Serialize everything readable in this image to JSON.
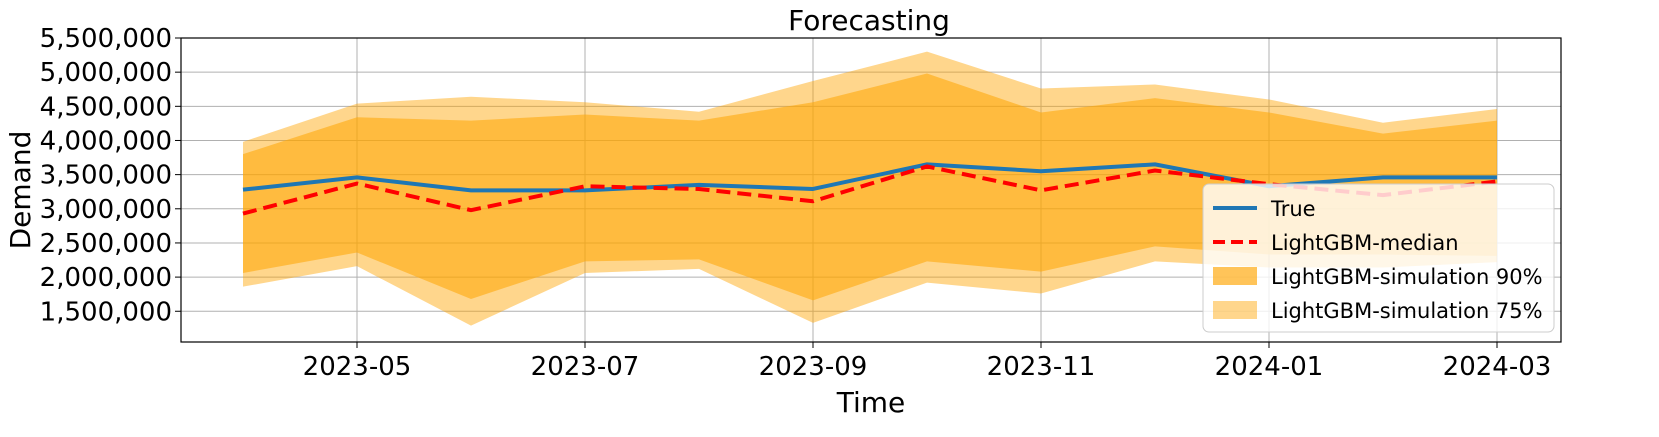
{
  "chart_data": {
    "type": "line",
    "title": "Forecasting",
    "xlabel": "Time",
    "ylabel": "Demand",
    "x": [
      "2023-04",
      "2023-05",
      "2023-06",
      "2023-07",
      "2023-08",
      "2023-09",
      "2023-10",
      "2023-11",
      "2023-12",
      "2024-01",
      "2024-02",
      "2024-03"
    ],
    "xticks": [
      "2023-05",
      "2023-07",
      "2023-09",
      "2023-11",
      "2024-01",
      "2024-03"
    ],
    "yticks": [
      1500000,
      2000000,
      2500000,
      3000000,
      3500000,
      4000000,
      4500000,
      5000000,
      5500000
    ],
    "ytick_labels": [
      "1,500,000",
      "2,000,000",
      "2,500,000",
      "3,000,000",
      "3,500,000",
      "4,000,000",
      "4,500,000",
      "5,000,000",
      "5,500,000"
    ],
    "ylim": [
      1050000,
      5500000
    ],
    "grid": true,
    "legend_position": "bottom-right",
    "series": [
      {
        "name": "True",
        "kind": "line",
        "color": "#1f77b4",
        "values": [
          3280000,
          3460000,
          3270000,
          3270000,
          3350000,
          3290000,
          3650000,
          3550000,
          3650000,
          3330000,
          3460000,
          3460000
        ]
      },
      {
        "name": "LightGBM-median",
        "kind": "dashed",
        "color": "#ff0000",
        "values": [
          2930000,
          3370000,
          2980000,
          3330000,
          3290000,
          3110000,
          3620000,
          3270000,
          3560000,
          3360000,
          3200000,
          3400000
        ]
      },
      {
        "name": "LightGBM-simulation 90%",
        "kind": "band",
        "color": "#ffb940",
        "lower": [
          2060000,
          2360000,
          1680000,
          2230000,
          2260000,
          1660000,
          2230000,
          2080000,
          2450000,
          2330000,
          2330000,
          2310000
        ],
        "upper": [
          3800000,
          4340000,
          4290000,
          4380000,
          4290000,
          4560000,
          4980000,
          4410000,
          4620000,
          4410000,
          4100000,
          4290000
        ]
      },
      {
        "name": "LightGBM-simulation 75%",
        "kind": "band",
        "color": "#ffd27a",
        "lower": [
          1860000,
          2160000,
          1290000,
          2060000,
          2120000,
          1330000,
          1920000,
          1760000,
          2230000,
          2140000,
          2140000,
          2220000
        ],
        "upper": [
          3980000,
          4540000,
          4640000,
          4560000,
          4420000,
          4870000,
          5300000,
          4760000,
          4820000,
          4600000,
          4260000,
          4460000
        ]
      }
    ]
  }
}
